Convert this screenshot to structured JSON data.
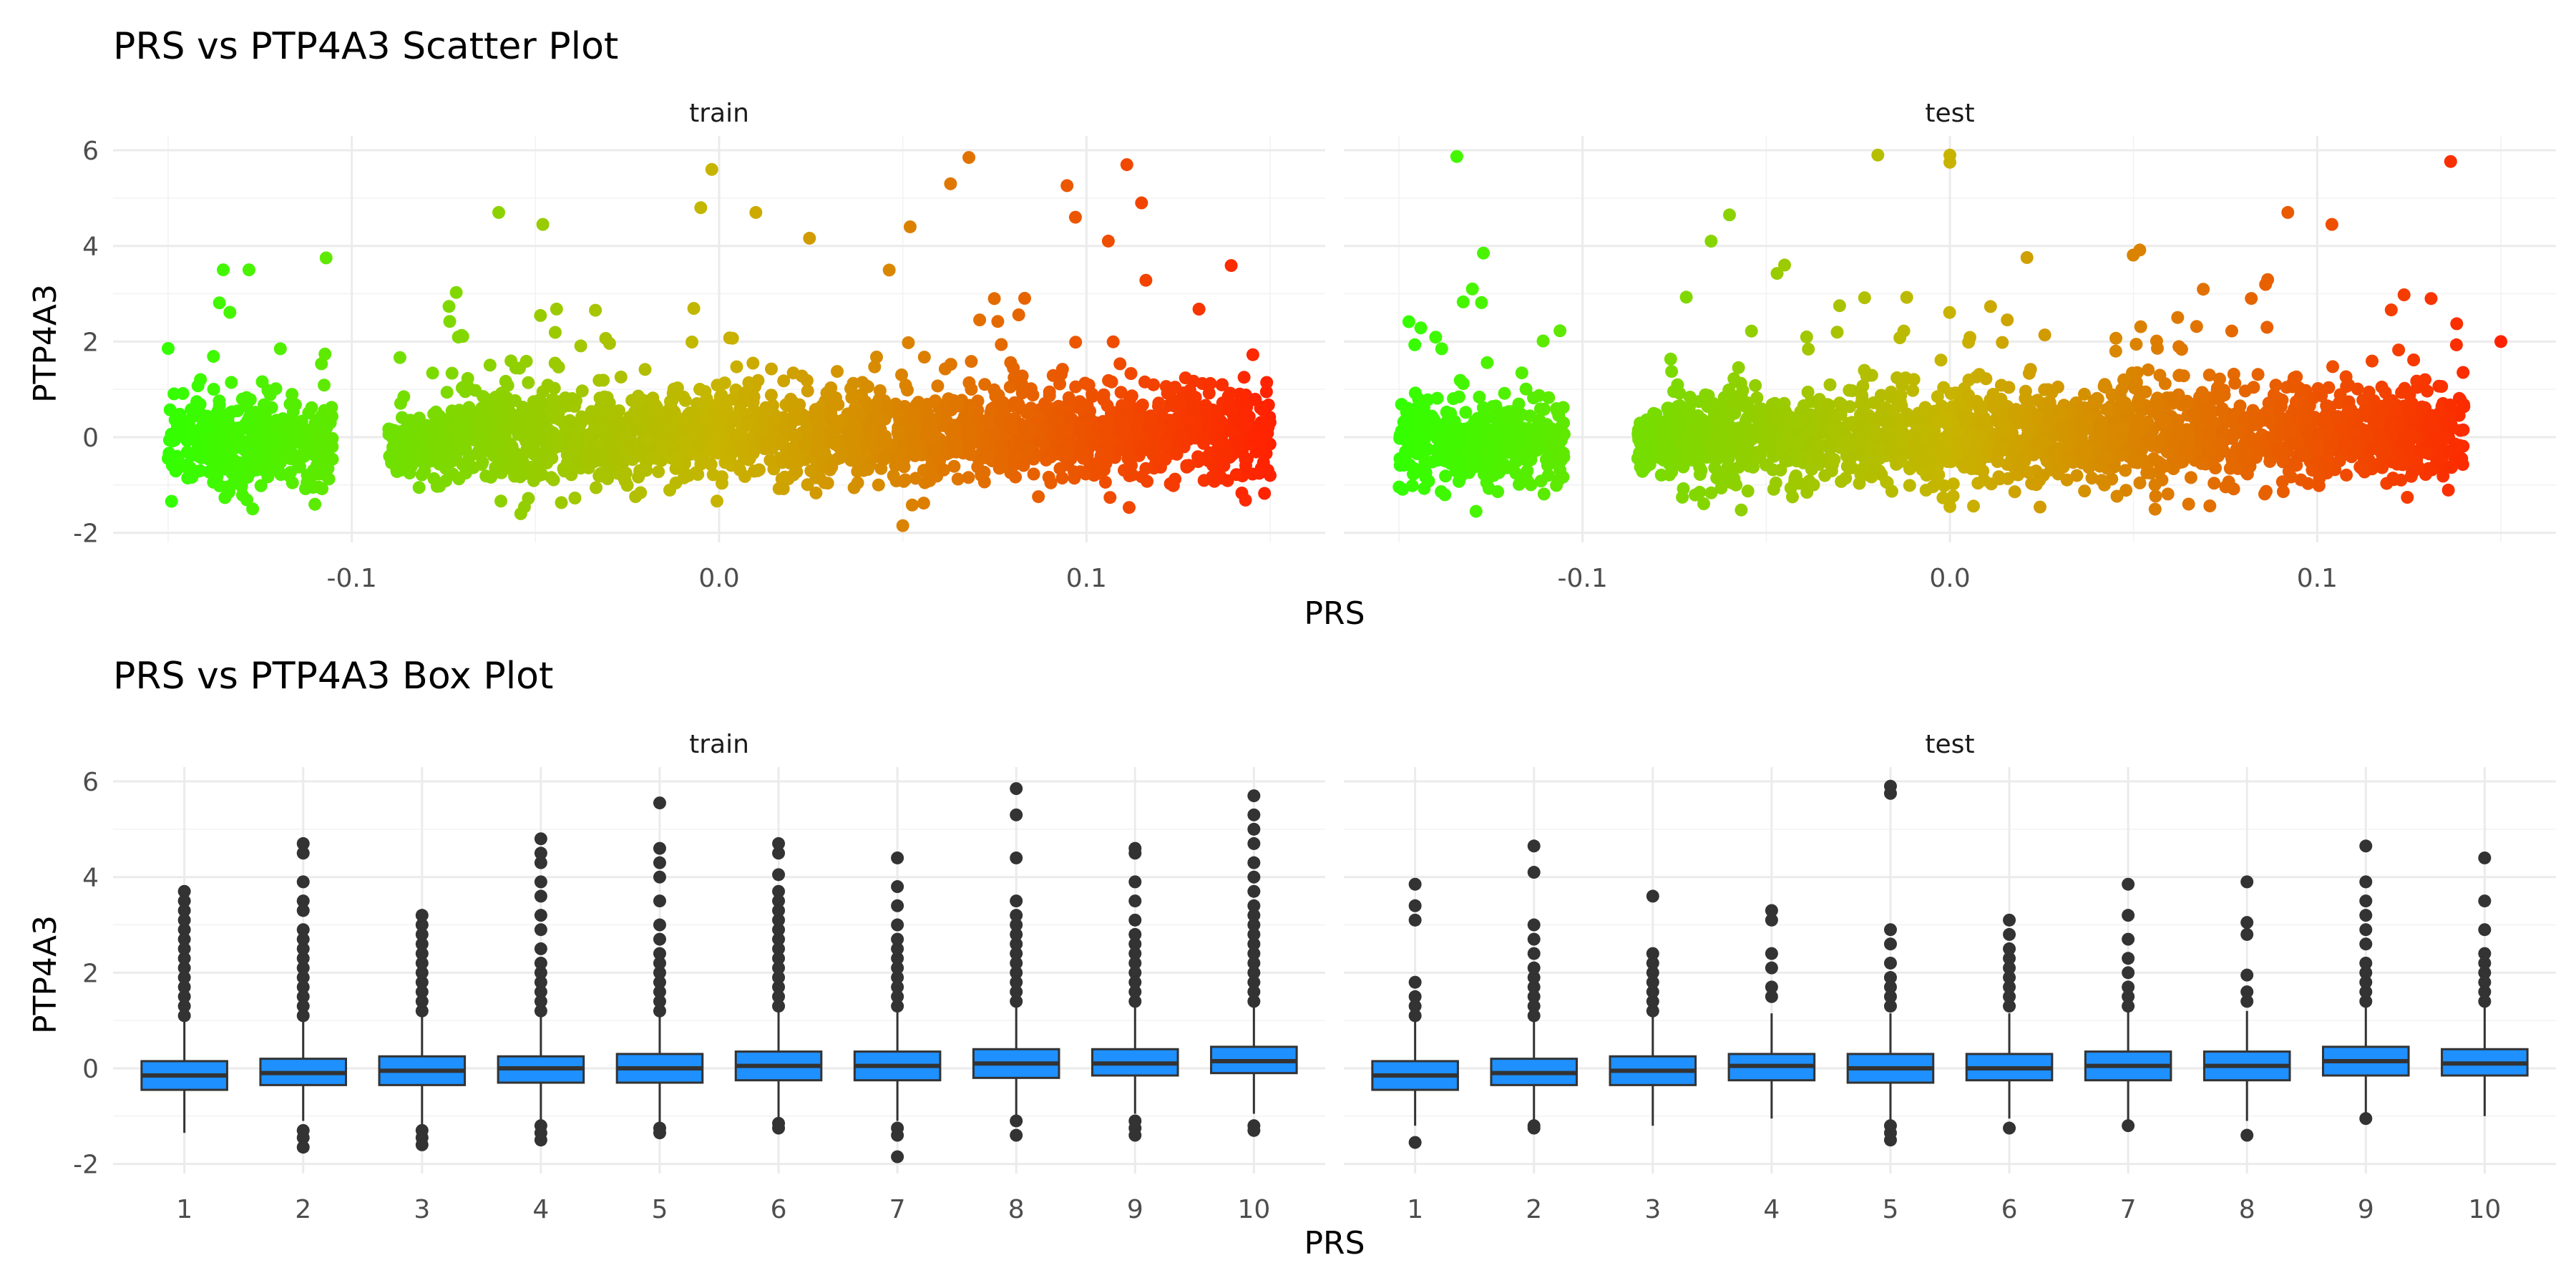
{
  "chart_data": [
    {
      "type": "scatter",
      "title": "PRS vs PTP4A3 Scatter Plot",
      "xlabel": "PRS",
      "ylabel": "PTP4A3",
      "xlim": [
        -0.165,
        0.165
      ],
      "ylim": [
        -2.2,
        6.3
      ],
      "x_ticks": [
        -0.1,
        0.0,
        0.1
      ],
      "x_tick_labels": [
        "-0.1",
        "0.0",
        "0.1"
      ],
      "y_ticks": [
        -2,
        0,
        2,
        4,
        6
      ],
      "y_tick_labels": [
        "-2",
        "0",
        "2",
        "4",
        "6"
      ],
      "grid": true,
      "color_gradient": {
        "low": "#33ff00",
        "mid": "#c8b400",
        "high": "#ff2200"
      },
      "panels": [
        {
          "name": "train",
          "clusters": [
            {
              "x": [
                -0.15,
                -0.105
              ],
              "y_mean": -0.1,
              "y_sd": 0.45
            },
            {
              "x": [
                -0.09,
                -0.078
              ],
              "y_mean": -0.2,
              "y_sd": 0.3
            },
            {
              "x": [
                -0.078,
                -0.035
              ],
              "y_mean": 0.0,
              "y_sd": 0.5
            },
            {
              "x": [
                -0.035,
                0.03
              ],
              "y_mean": 0.0,
              "y_sd": 0.5
            },
            {
              "x": [
                0.03,
                0.08
              ],
              "y_mean": 0.1,
              "y_sd": 0.5
            },
            {
              "x": [
                0.08,
                0.15
              ],
              "y_mean": 0.1,
              "y_sd": 0.5
            }
          ],
          "notable_points": [
            {
              "x": -0.135,
              "y": 3.5
            },
            {
              "x": -0.128,
              "y": 3.5
            },
            {
              "x": -0.107,
              "y": 3.75
            },
            {
              "x": -0.06,
              "y": 4.7
            },
            {
              "x": -0.048,
              "y": 4.45
            },
            {
              "x": -0.005,
              "y": 4.8
            },
            {
              "x": -0.002,
              "y": 5.6
            },
            {
              "x": 0.01,
              "y": 4.7
            },
            {
              "x": 0.052,
              "y": 4.4
            },
            {
              "x": 0.063,
              "y": 5.3
            },
            {
              "x": 0.068,
              "y": 5.85
            },
            {
              "x": 0.097,
              "y": 4.6
            },
            {
              "x": 0.111,
              "y": 5.7
            },
            {
              "x": 0.115,
              "y": 4.9
            },
            {
              "x": 0.05,
              "y": -1.85
            },
            {
              "x": -0.054,
              "y": -1.6
            },
            {
              "x": 0.149,
              "y": 0.95
            },
            {
              "x": 0.15,
              "y": -0.8
            }
          ]
        },
        {
          "name": "test",
          "clusters": [
            {
              "x": [
                -0.15,
                -0.105
              ],
              "y_mean": -0.1,
              "y_sd": 0.45
            },
            {
              "x": [
                -0.085,
                -0.075
              ],
              "y_mean": -0.1,
              "y_sd": 0.3
            },
            {
              "x": [
                -0.078,
                -0.03
              ],
              "y_mean": 0.0,
              "y_sd": 0.5
            },
            {
              "x": [
                -0.03,
                0.035
              ],
              "y_mean": 0.0,
              "y_sd": 0.5
            },
            {
              "x": [
                0.035,
                0.08
              ],
              "y_mean": 0.1,
              "y_sd": 0.5
            },
            {
              "x": [
                0.08,
                0.14
              ],
              "y_mean": 0.1,
              "y_sd": 0.5
            }
          ],
          "notable_points": [
            {
              "x": -0.127,
              "y": 3.85
            },
            {
              "x": -0.13,
              "y": 3.1
            },
            {
              "x": -0.06,
              "y": 4.65
            },
            {
              "x": -0.065,
              "y": 4.1
            },
            {
              "x": -0.045,
              "y": 3.6
            },
            {
              "x": 0.0,
              "y": 5.9
            },
            {
              "x": 0.0,
              "y": 5.75
            },
            {
              "x": 0.092,
              "y": 4.7
            },
            {
              "x": 0.104,
              "y": 4.45
            },
            {
              "x": 0.15,
              "y": 2.0
            },
            {
              "x": 0.131,
              "y": 2.9
            },
            {
              "x": -0.129,
              "y": -1.55
            },
            {
              "x": 0.0,
              "y": -1.45
            },
            {
              "x": 0.065,
              "y": -1.4
            }
          ]
        }
      ]
    },
    {
      "type": "box",
      "title": "PRS vs PTP4A3 Box Plot",
      "xlabel": "PRS",
      "ylabel": "PTP4A3",
      "categories": [
        "1",
        "2",
        "3",
        "4",
        "5",
        "6",
        "7",
        "8",
        "9",
        "10"
      ],
      "ylim": [
        -2.2,
        6.3
      ],
      "y_ticks": [
        -2,
        0,
        2,
        4,
        6
      ],
      "y_tick_labels": [
        "-2",
        "0",
        "2",
        "4",
        "6"
      ],
      "grid": true,
      "box_color": "#1e90ff",
      "panels": [
        {
          "name": "train",
          "boxes": [
            {
              "q1": -0.45,
              "median": -0.15,
              "q3": 0.15,
              "lower": -1.35,
              "upper": 1.05,
              "outliers": [
                1.1,
                1.3,
                1.5,
                1.7,
                1.9,
                2.1,
                2.3,
                2.5,
                2.7,
                2.9,
                3.1,
                3.3,
                3.5,
                3.7
              ]
            },
            {
              "q1": -0.35,
              "median": -0.1,
              "q3": 0.2,
              "lower": -1.1,
              "upper": 1.05,
              "outliers": [
                -1.3,
                -1.45,
                -1.65,
                1.1,
                1.3,
                1.5,
                1.7,
                1.9,
                2.1,
                2.3,
                2.5,
                2.7,
                2.9,
                3.3,
                3.5,
                3.9,
                4.5,
                4.7
              ]
            },
            {
              "q1": -0.35,
              "median": -0.05,
              "q3": 0.25,
              "lower": -1.2,
              "upper": 1.1,
              "outliers": [
                -1.3,
                -1.45,
                -1.6,
                1.2,
                1.4,
                1.6,
                1.8,
                2.0,
                2.2,
                2.4,
                2.6,
                2.8,
                3.0,
                3.2
              ]
            },
            {
              "q1": -0.3,
              "median": 0.0,
              "q3": 0.25,
              "lower": -1.1,
              "upper": 1.1,
              "outliers": [
                -1.2,
                -1.35,
                -1.5,
                1.2,
                1.4,
                1.6,
                1.8,
                2.0,
                2.2,
                2.5,
                2.9,
                3.2,
                3.6,
                3.9,
                4.3,
                4.5,
                4.8
              ]
            },
            {
              "q1": -0.3,
              "median": 0.0,
              "q3": 0.3,
              "lower": -1.15,
              "upper": 1.15,
              "outliers": [
                -1.25,
                -1.35,
                1.2,
                1.4,
                1.6,
                1.8,
                2.0,
                2.2,
                2.4,
                2.7,
                3.0,
                3.5,
                4.0,
                4.3,
                4.6,
                5.55
              ]
            },
            {
              "q1": -0.25,
              "median": 0.05,
              "q3": 0.35,
              "lower": -1.1,
              "upper": 1.2,
              "outliers": [
                -1.15,
                -1.25,
                1.3,
                1.5,
                1.7,
                1.9,
                2.1,
                2.3,
                2.5,
                2.7,
                2.9,
                3.1,
                3.3,
                3.5,
                3.7,
                4.05,
                4.5,
                4.7
              ]
            },
            {
              "q1": -0.25,
              "median": 0.05,
              "q3": 0.35,
              "lower": -1.1,
              "upper": 1.2,
              "outliers": [
                -1.25,
                -1.4,
                -1.85,
                1.3,
                1.5,
                1.7,
                1.9,
                2.1,
                2.3,
                2.5,
                2.7,
                3.0,
                3.4,
                3.8,
                4.4
              ]
            },
            {
              "q1": -0.2,
              "median": 0.1,
              "q3": 0.4,
              "lower": -1.0,
              "upper": 1.3,
              "outliers": [
                -1.1,
                -1.4,
                1.4,
                1.6,
                1.8,
                2.0,
                2.2,
                2.4,
                2.6,
                2.8,
                3.0,
                3.2,
                3.5,
                4.4,
                5.3,
                5.85
              ]
            },
            {
              "q1": -0.15,
              "median": 0.1,
              "q3": 0.4,
              "lower": -0.95,
              "upper": 1.3,
              "outliers": [
                -1.1,
                -1.25,
                -1.4,
                1.4,
                1.6,
                1.8,
                2.0,
                2.2,
                2.4,
                2.6,
                2.8,
                3.1,
                3.5,
                3.9,
                4.5,
                4.6
              ]
            },
            {
              "q1": -0.1,
              "median": 0.15,
              "q3": 0.45,
              "lower": -0.95,
              "upper": 1.35,
              "outliers": [
                -1.2,
                -1.3,
                1.4,
                1.6,
                1.8,
                2.0,
                2.2,
                2.4,
                2.6,
                2.8,
                3.0,
                3.2,
                3.4,
                3.7,
                4.0,
                4.3,
                4.7,
                5.0,
                5.3,
                5.7
              ]
            }
          ]
        },
        {
          "name": "test",
          "boxes": [
            {
              "q1": -0.45,
              "median": -0.15,
              "q3": 0.15,
              "lower": -1.2,
              "upper": 1.0,
              "outliers": [
                -1.55,
                1.1,
                1.3,
                1.5,
                1.8,
                3.1,
                3.4,
                3.85
              ]
            },
            {
              "q1": -0.35,
              "median": -0.1,
              "q3": 0.2,
              "lower": -1.1,
              "upper": 1.05,
              "outliers": [
                -1.2,
                -1.25,
                1.1,
                1.3,
                1.5,
                1.7,
                1.9,
                2.1,
                2.4,
                2.7,
                3.0,
                4.1,
                4.65
              ]
            },
            {
              "q1": -0.35,
              "median": -0.05,
              "q3": 0.25,
              "lower": -1.2,
              "upper": 1.1,
              "outliers": [
                1.2,
                1.4,
                1.6,
                1.8,
                2.0,
                2.2,
                2.4,
                3.6
              ]
            },
            {
              "q1": -0.25,
              "median": 0.05,
              "q3": 0.3,
              "lower": -1.05,
              "upper": 1.15,
              "outliers": [
                1.5,
                1.7,
                2.1,
                2.4,
                3.1,
                3.3
              ]
            },
            {
              "q1": -0.3,
              "median": 0.0,
              "q3": 0.3,
              "lower": -1.15,
              "upper": 1.15,
              "outliers": [
                -1.2,
                -1.35,
                -1.5,
                1.3,
                1.5,
                1.7,
                1.9,
                2.2,
                2.6,
                2.9,
                5.75,
                5.9
              ]
            },
            {
              "q1": -0.25,
              "median": 0.0,
              "q3": 0.3,
              "lower": -1.05,
              "upper": 1.15,
              "outliers": [
                -1.25,
                1.3,
                1.5,
                1.7,
                1.9,
                2.1,
                2.3,
                2.5,
                2.8,
                3.1
              ]
            },
            {
              "q1": -0.25,
              "median": 0.05,
              "q3": 0.35,
              "lower": -1.15,
              "upper": 1.2,
              "outliers": [
                -1.2,
                1.3,
                1.5,
                1.7,
                2.0,
                2.3,
                2.7,
                3.2,
                3.85
              ]
            },
            {
              "q1": -0.25,
              "median": 0.05,
              "q3": 0.35,
              "lower": -1.1,
              "upper": 1.2,
              "outliers": [
                -1.4,
                1.4,
                1.6,
                1.95,
                2.8,
                3.05,
                3.9
              ]
            },
            {
              "q1": -0.15,
              "median": 0.15,
              "q3": 0.45,
              "lower": -0.95,
              "upper": 1.3,
              "outliers": [
                -1.05,
                1.4,
                1.6,
                1.8,
                2.0,
                2.2,
                2.6,
                2.9,
                3.2,
                3.5,
                3.9,
                4.65
              ]
            },
            {
              "q1": -0.15,
              "median": 0.1,
              "q3": 0.4,
              "lower": -1.0,
              "upper": 1.3,
              "outliers": [
                1.4,
                1.6,
                1.8,
                2.0,
                2.2,
                2.4,
                2.9,
                3.5,
                4.4
              ]
            }
          ]
        }
      ]
    }
  ]
}
